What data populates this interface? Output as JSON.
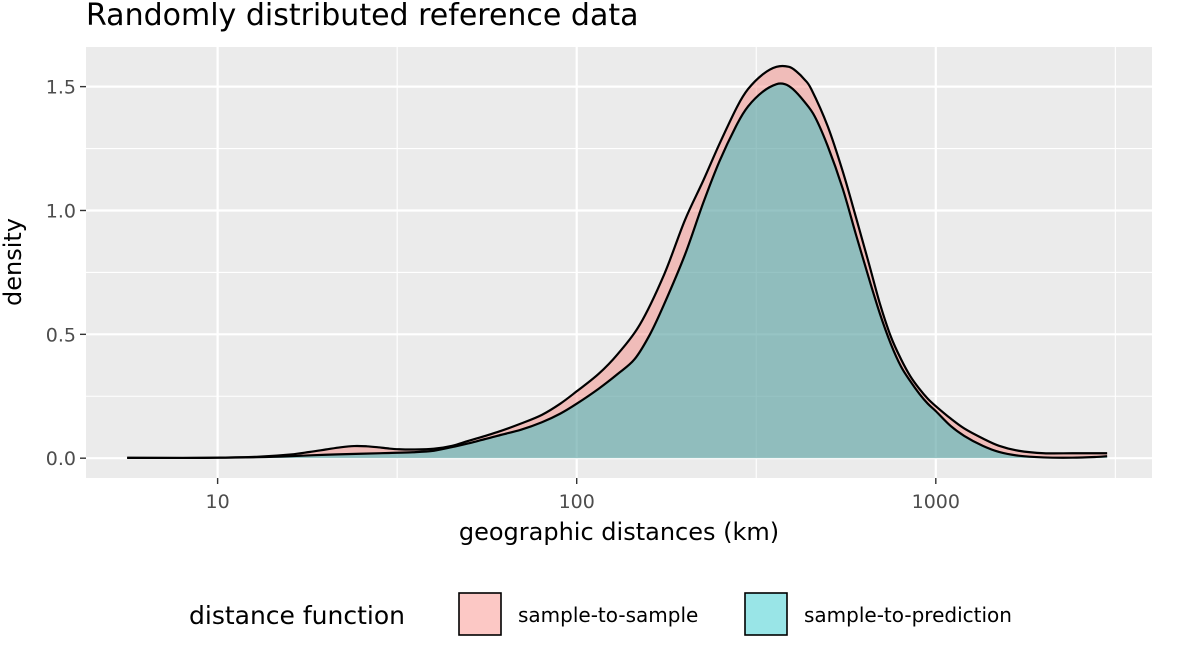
{
  "chart_data": {
    "type": "area",
    "title": "Randomly distributed reference data",
    "xlabel": "geographic distances (km)",
    "ylabel": "density",
    "x_scale": "log10",
    "xlim": [
      4.3,
      4000
    ],
    "ylim": [
      -0.08,
      1.66
    ],
    "x_ticks": [
      10,
      100,
      1000
    ],
    "x_tick_labels": [
      "10",
      "100",
      "1000"
    ],
    "y_ticks": [
      0,
      0.5,
      1,
      1.5
    ],
    "y_tick_labels": [
      "0.0",
      "0.5",
      "1.0",
      "1.5"
    ],
    "grid": true,
    "legend": {
      "title": "distance function",
      "position": "bottom"
    },
    "series": [
      {
        "name": "sample-to-sample",
        "color": "#F8766D",
        "x": [
          5.6,
          8,
          10,
          13,
          16,
          18,
          20,
          22,
          24,
          26,
          28,
          30,
          32,
          35,
          40,
          45,
          50,
          60,
          70,
          80,
          90,
          100,
          115,
          130,
          150,
          175,
          200,
          225,
          250,
          280,
          300,
          330,
          360,
          390,
          410,
          430,
          450,
          500,
          550,
          600,
          650,
          700,
          750,
          800,
          850,
          900,
          950,
          1000,
          1100,
          1200,
          1350,
          1500,
          1700,
          2000,
          2400,
          2800,
          3000
        ],
        "y": [
          0.002,
          0.001,
          0.002,
          0.006,
          0.015,
          0.025,
          0.035,
          0.044,
          0.049,
          0.048,
          0.044,
          0.039,
          0.036,
          0.035,
          0.038,
          0.05,
          0.07,
          0.105,
          0.14,
          0.175,
          0.22,
          0.27,
          0.34,
          0.42,
          0.54,
          0.74,
          0.96,
          1.12,
          1.27,
          1.42,
          1.49,
          1.55,
          1.58,
          1.58,
          1.56,
          1.53,
          1.49,
          1.34,
          1.16,
          0.97,
          0.79,
          0.62,
          0.49,
          0.4,
          0.33,
          0.28,
          0.24,
          0.21,
          0.16,
          0.12,
          0.08,
          0.05,
          0.03,
          0.02,
          0.02,
          0.02,
          0.02
        ]
      },
      {
        "name": "sample-to-prediction",
        "color": "#00BFC4",
        "x": [
          5.6,
          8,
          10,
          13,
          16,
          20,
          25,
          30,
          35,
          40,
          45,
          50,
          60,
          70,
          80,
          90,
          100,
          115,
          130,
          145,
          160,
          175,
          200,
          225,
          250,
          280,
          300,
          330,
          360,
          380,
          400,
          430,
          460,
          500,
          550,
          600,
          650,
          700,
          750,
          800,
          850,
          900,
          950,
          1000,
          1100,
          1200,
          1350,
          1500,
          1700,
          2000,
          2400,
          2800,
          3000
        ],
        "y": [
          0.001,
          0.001,
          0.002,
          0.004,
          0.008,
          0.014,
          0.018,
          0.021,
          0.024,
          0.03,
          0.045,
          0.06,
          0.09,
          0.115,
          0.145,
          0.18,
          0.22,
          0.28,
          0.34,
          0.4,
          0.5,
          0.62,
          0.82,
          1.03,
          1.2,
          1.35,
          1.42,
          1.48,
          1.51,
          1.51,
          1.49,
          1.44,
          1.38,
          1.26,
          1.09,
          0.9,
          0.73,
          0.58,
          0.46,
          0.37,
          0.31,
          0.26,
          0.22,
          0.19,
          0.13,
          0.09,
          0.05,
          0.025,
          0.01,
          0.003,
          0.002,
          0.005,
          0.008
        ]
      }
    ]
  }
}
